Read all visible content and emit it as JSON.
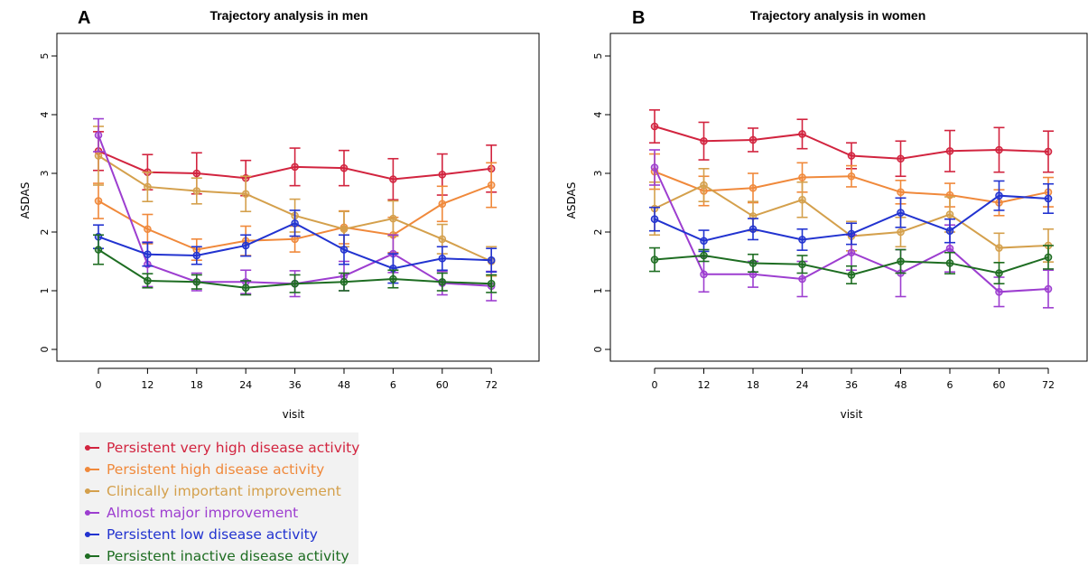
{
  "panels": [
    {
      "letter": "A",
      "title": "Trajectory analysis in men"
    },
    {
      "letter": "B",
      "title": "Trajectory analysis in women"
    }
  ],
  "legend": [
    {
      "label": "Persistent very high disease activity",
      "color": "#d2243f"
    },
    {
      "label": "Persistent high disease activity",
      "color": "#f0893b"
    },
    {
      "label": "Clinically important improvement",
      "color": "#d4a04c"
    },
    {
      "label": "Almost major improvement",
      "color": "#9d3ed0"
    },
    {
      "label": "Persistent low disease activity",
      "color": "#2233d0"
    },
    {
      "label": "Persistent inactive disease activity",
      "color": "#1e6d22"
    }
  ],
  "chart_data": [
    {
      "type": "line",
      "title": "Trajectory analysis in men",
      "xlabel": "visit",
      "ylabel": "ASDAS",
      "categories": [
        "0",
        "12",
        "18",
        "24",
        "36",
        "48",
        "6",
        "60",
        "72"
      ],
      "ylim": [
        0,
        5
      ],
      "yticks": [
        0,
        1,
        2,
        3,
        4,
        5
      ],
      "grid": false,
      "series": [
        {
          "name": "Persistent very high disease activity",
          "color": "#d2243f",
          "values": [
            3.38,
            3.02,
            3.0,
            2.92,
            3.11,
            3.09,
            2.9,
            2.98,
            3.08
          ],
          "err": [
            0.33,
            0.3,
            0.35,
            0.3,
            0.32,
            0.3,
            0.35,
            0.35,
            0.4
          ]
        },
        {
          "name": "Persistent high disease activity",
          "color": "#f0893b",
          "values": [
            2.53,
            2.05,
            1.7,
            1.85,
            1.88,
            2.08,
            1.95,
            2.48,
            2.8
          ],
          "err": [
            0.3,
            0.25,
            0.18,
            0.25,
            0.22,
            0.28,
            0.3,
            0.3,
            0.38
          ]
        },
        {
          "name": "Clinically important improvement",
          "color": "#d4a04c",
          "values": [
            3.3,
            2.77,
            2.7,
            2.65,
            2.28,
            2.05,
            2.23,
            1.88,
            1.5
          ],
          "err": [
            0.5,
            0.25,
            0.22,
            0.3,
            0.28,
            0.3,
            0.3,
            0.25,
            0.25
          ]
        },
        {
          "name": "Almost major improvement",
          "color": "#9d3ed0",
          "values": [
            3.65,
            1.45,
            1.15,
            1.15,
            1.12,
            1.25,
            1.63,
            1.13,
            1.08
          ],
          "err": [
            0.28,
            0.38,
            0.15,
            0.2,
            0.22,
            0.25,
            0.32,
            0.2,
            0.25
          ]
        },
        {
          "name": "Persistent low disease activity",
          "color": "#2233d0",
          "values": [
            1.92,
            1.62,
            1.6,
            1.77,
            2.15,
            1.7,
            1.38,
            1.55,
            1.52
          ],
          "err": [
            0.2,
            0.2,
            0.15,
            0.18,
            0.22,
            0.25,
            0.25,
            0.2,
            0.2
          ]
        },
        {
          "name": "Persistent inactive disease activity",
          "color": "#1e6d22",
          "values": [
            1.7,
            1.17,
            1.15,
            1.05,
            1.12,
            1.15,
            1.2,
            1.15,
            1.12
          ],
          "err": [
            0.25,
            0.12,
            0.12,
            0.12,
            0.15,
            0.15,
            0.15,
            0.15,
            0.15
          ]
        }
      ]
    },
    {
      "type": "line",
      "title": "Trajectory analysis in women",
      "xlabel": "visit",
      "ylabel": "ASDAS",
      "categories": [
        "0",
        "12",
        "18",
        "24",
        "36",
        "48",
        "6",
        "60",
        "72"
      ],
      "ylim": [
        0,
        5
      ],
      "yticks": [
        0,
        1,
        2,
        3,
        4,
        5
      ],
      "grid": false,
      "series": [
        {
          "name": "Persistent very high disease activity",
          "color": "#d2243f",
          "values": [
            3.8,
            3.55,
            3.57,
            3.67,
            3.3,
            3.25,
            3.38,
            3.4,
            3.37
          ],
          "err": [
            0.28,
            0.32,
            0.2,
            0.25,
            0.22,
            0.3,
            0.35,
            0.38,
            0.35
          ]
        },
        {
          "name": "Persistent high disease activity",
          "color": "#f0893b",
          "values": [
            3.03,
            2.7,
            2.75,
            2.93,
            2.95,
            2.68,
            2.63,
            2.5,
            2.68
          ],
          "err": [
            0.3,
            0.25,
            0.25,
            0.25,
            0.18,
            0.2,
            0.2,
            0.22,
            0.25
          ]
        },
        {
          "name": "Clinically important improvement",
          "color": "#d4a04c",
          "values": [
            2.4,
            2.8,
            2.27,
            2.55,
            1.93,
            2.0,
            2.3,
            1.73,
            1.77
          ],
          "err": [
            0.45,
            0.28,
            0.25,
            0.3,
            0.25,
            0.25,
            0.3,
            0.25,
            0.28
          ]
        },
        {
          "name": "Almost major improvement",
          "color": "#9d3ed0",
          "values": [
            3.1,
            1.28,
            1.28,
            1.2,
            1.65,
            1.3,
            1.72,
            0.98,
            1.03
          ],
          "err": [
            0.3,
            0.3,
            0.22,
            0.3,
            0.3,
            0.4,
            0.4,
            0.25,
            0.32
          ]
        },
        {
          "name": "Persistent low disease activity",
          "color": "#2233d0",
          "values": [
            2.22,
            1.85,
            2.05,
            1.87,
            1.97,
            2.33,
            2.02,
            2.62,
            2.57
          ],
          "err": [
            0.2,
            0.18,
            0.18,
            0.18,
            0.18,
            0.25,
            0.2,
            0.25,
            0.25
          ]
        },
        {
          "name": "Persistent inactive disease activity",
          "color": "#1e6d22",
          "values": [
            1.53,
            1.6,
            1.47,
            1.45,
            1.27,
            1.5,
            1.47,
            1.3,
            1.57
          ],
          "err": [
            0.2,
            0.1,
            0.15,
            0.15,
            0.15,
            0.2,
            0.18,
            0.18,
            0.2
          ]
        }
      ]
    }
  ]
}
